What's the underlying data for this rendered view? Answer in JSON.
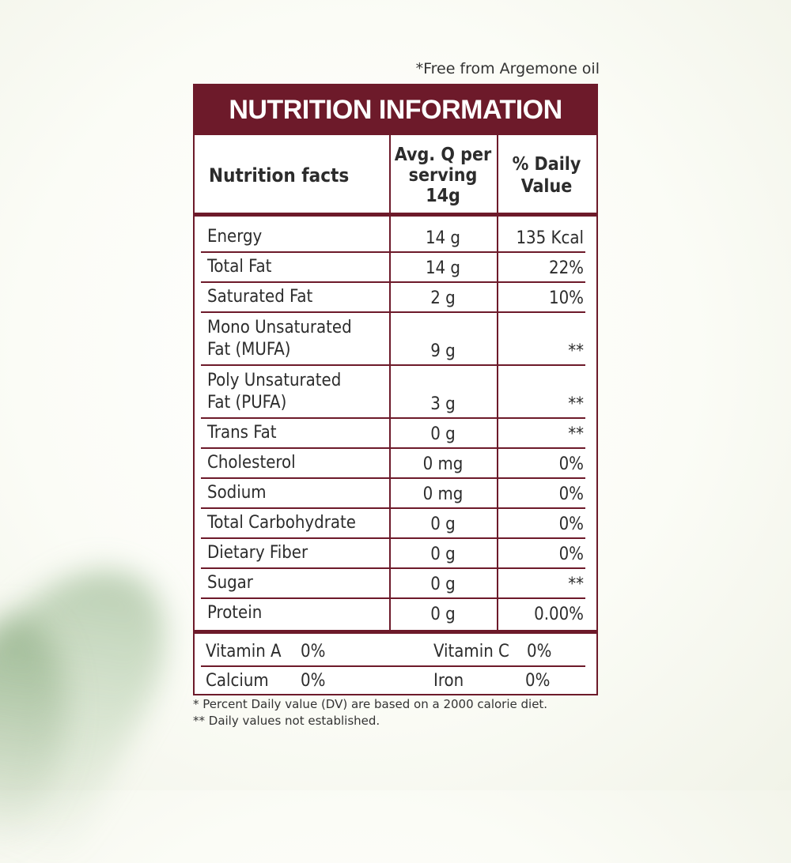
{
  "note_top": "*Free from Argemone oil",
  "title": "NUTRITION INFORMATION",
  "headers": {
    "name": "Nutrition facts",
    "qty_line1": "Avg. Q per",
    "qty_line2": "serving",
    "qty_line3": "14g",
    "dv_line1": "% Daily",
    "dv_line2": "Value"
  },
  "rows": [
    {
      "name": "Energy",
      "name2": "",
      "qty": "14 g",
      "dv": "135 Kcal"
    },
    {
      "name": "Total Fat",
      "name2": "",
      "qty": "14 g",
      "dv": "22%"
    },
    {
      "name": "Saturated Fat",
      "name2": "",
      "qty": "2 g",
      "dv": "10%"
    },
    {
      "name": "Mono Unsaturated",
      "name2": "Fat (MUFA)",
      "qty": "9 g",
      "dv": "**"
    },
    {
      "name": "Poly Unsaturated",
      "name2": "Fat (PUFA)",
      "qty": "3 g",
      "dv": "**"
    },
    {
      "name": "Trans Fat",
      "name2": "",
      "qty": "0 g",
      "dv": "**"
    },
    {
      "name": "Cholesterol",
      "name2": "",
      "qty": "0 mg",
      "dv": "0%"
    },
    {
      "name": "Sodium",
      "name2": "",
      "qty": "0 mg",
      "dv": "0%"
    },
    {
      "name": "Total Carbohydrate",
      "name2": "",
      "qty": "0 g",
      "dv": "0%"
    },
    {
      "name": "Dietary Fiber",
      "name2": "",
      "qty": "0 g",
      "dv": "0%"
    },
    {
      "name": "Sugar",
      "name2": "",
      "qty": "0 g",
      "dv": "**"
    },
    {
      "name": "Protein",
      "name2": "",
      "qty": "0 g",
      "dv": "0.00%"
    }
  ],
  "vitamins": {
    "vitamin_a_label": "Vitamin A",
    "vitamin_a_value": "0%",
    "vitamin_c_label": "Vitamin C",
    "vitamin_c_value": "0%",
    "calcium_label": "Calcium",
    "calcium_value": "0%",
    "iron_label": "Iron",
    "iron_value": "0%"
  },
  "footnotes": {
    "line1": "* Percent Daily value (DV) are based on a 2000 calorie diet.",
    "line2": "** Daily values not established."
  },
  "colors": {
    "accent": "#6d1a2a"
  }
}
